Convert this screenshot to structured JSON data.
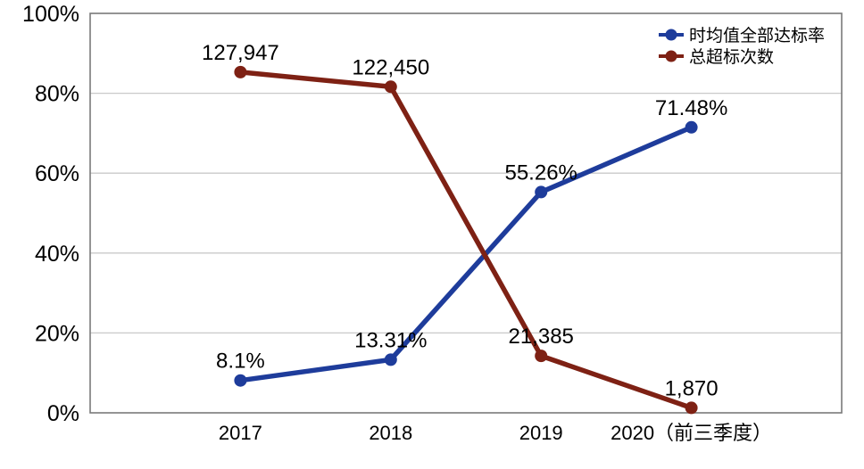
{
  "chart_data": {
    "type": "line",
    "title": "",
    "xlabel": "",
    "ylabel": "",
    "categories": [
      "2017",
      "2018",
      "2019",
      "2020（前三季度）"
    ],
    "series": [
      {
        "name": "时均值全部达标率",
        "color": "#1E3C9B",
        "axis": "left",
        "values": [
          8.1,
          13.31,
          55.26,
          71.48
        ],
        "labels": [
          "8.1%",
          "13.31%",
          "55.26%",
          "71.48%"
        ]
      },
      {
        "name": "总超标次数",
        "color": "#7E2114",
        "axis": "right",
        "values": [
          127947,
          122450,
          21385,
          1870
        ],
        "labels": [
          "127,947",
          "122,450",
          "21,385",
          "1,870"
        ]
      }
    ],
    "left_axis": {
      "min": 0,
      "max": 100,
      "step": 20,
      "tick_labels": [
        "0%",
        "20%",
        "40%",
        "60%",
        "80%",
        "100%"
      ]
    },
    "right_axis": {
      "min": 0,
      "max": 150000,
      "visible": false
    },
    "grid": true,
    "legend_position": "top-right",
    "colors": {
      "grid": "#C9C9C9",
      "border": "#7A7A7A",
      "text": "#000000",
      "background": "#FFFFFF"
    }
  }
}
